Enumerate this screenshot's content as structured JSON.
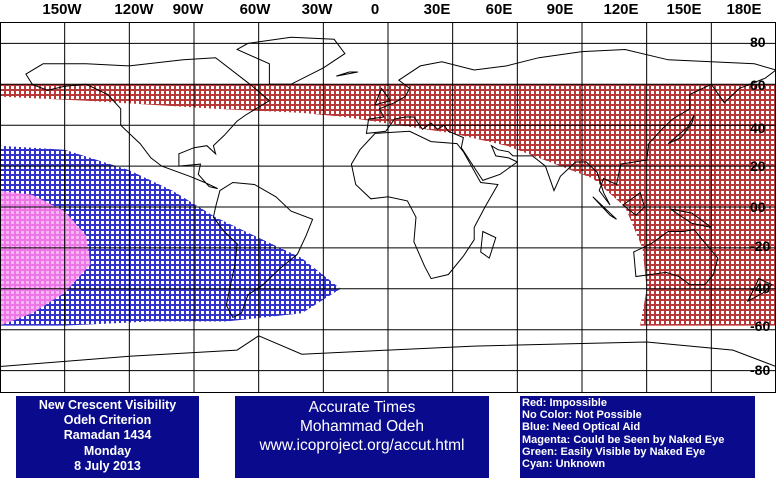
{
  "map": {
    "longitude_labels": [
      "150W",
      "120W",
      "90W",
      "60W",
      "30W",
      "0",
      "30E",
      "60E",
      "90E",
      "120E",
      "150E",
      "180E"
    ],
    "latitude_labels": [
      "80",
      "60",
      "40",
      "20",
      "00",
      "-20",
      "-40",
      "-60",
      "-80"
    ],
    "grid_color": "#000000",
    "visibility_zones": [
      {
        "color_name": "red",
        "color": "#b22222",
        "meaning": "Impossible"
      },
      {
        "color_name": "blue",
        "color": "#1c1cc8",
        "meaning": "Need Optical Aid"
      },
      {
        "color_name": "magenta",
        "color": "#ee6ee6",
        "meaning": "Could be Seen by Naked Eye"
      }
    ]
  },
  "criterion_box": {
    "lines": [
      "New Crescent Visibility",
      "Odeh Criterion",
      "Ramadan 1434",
      "Monday",
      "8 July 2013"
    ]
  },
  "author_box": {
    "lines": [
      "Accurate Times",
      "Mohammad Odeh",
      "www.icoproject.org/accut.html"
    ]
  },
  "legend_box": {
    "lines": [
      "Red: Impossible",
      "No Color: Not Possible",
      "Blue: Need Optical Aid",
      "Magenta: Could be Seen by Naked Eye",
      "Green: Easily Visible by Naked Eye",
      "Cyan: Unknown"
    ]
  },
  "colors": {
    "info_box_background": "#0a0a8c",
    "info_box_text": "#ffffff"
  }
}
